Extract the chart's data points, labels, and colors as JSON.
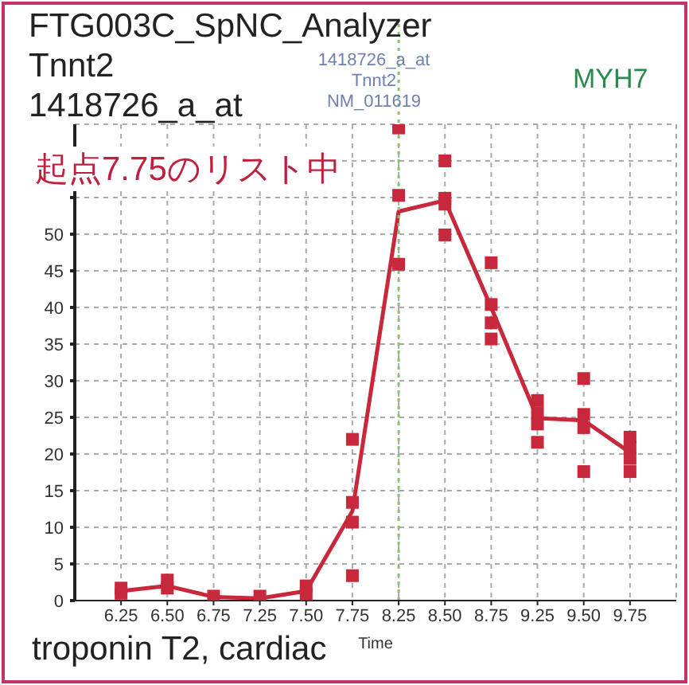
{
  "chart_data": {
    "type": "line",
    "title": "FTG003C_SpNC_Analyzer",
    "subtitle": "Tnnt2",
    "xlabel": "Time",
    "annotations": [
      "1418726_a_at",
      "起点7.75のリスト中",
      "troponin T2, cardiac",
      "MYH7",
      "1418726_a_at",
      "Tnnt2",
      "NM_011619"
    ],
    "categories": [
      "6.25",
      "6.50",
      "6.75",
      "7.25",
      "7.50",
      "7.75",
      "8.25",
      "8.50",
      "8.75",
      "9.25",
      "9.50",
      "9.75"
    ],
    "series": [
      {
        "color": "#c8283c",
        "values": [
          1.3,
          2.0,
          0.5,
          0.3,
          1.3,
          12.2,
          53.1,
          54.6,
          40.0,
          24.9,
          24.6,
          20.2
        ]
      },
      {
        "type": "scatter",
        "color": "#c8283c",
        "marker": "square",
        "x": [
          "6.25",
          "6.25",
          "6.50",
          "6.50",
          "6.75",
          "7.25",
          "7.50",
          "7.50",
          "7.75",
          "7.75",
          "7.75",
          "7.75",
          "8.25",
          "8.25",
          "8.25",
          "8.50",
          "8.50",
          "8.50",
          "8.50",
          "8.75",
          "8.75",
          "8.75",
          "8.75",
          "9.25",
          "9.25",
          "9.25",
          "9.25",
          "9.50",
          "9.50",
          "9.50",
          "9.50",
          "9.75",
          "9.75",
          "9.75",
          "9.75"
        ],
        "values": [
          1.0,
          1.7,
          2.8,
          1.7,
          0.6,
          0.6,
          2.0,
          0.9,
          22.0,
          13.4,
          10.7,
          3.4,
          64.5,
          55.3,
          45.9,
          60.0,
          54.9,
          54.1,
          49.9,
          46.1,
          40.4,
          37.9,
          35.7,
          27.3,
          25.6,
          24.1,
          21.6,
          30.3,
          25.4,
          23.6,
          17.6,
          22.3,
          20.9,
          19.4,
          17.6
        ]
      }
    ],
    "ylim": [
      0,
      65
    ],
    "yticks": [
      0,
      5,
      10,
      15,
      20,
      25,
      30,
      35,
      40,
      45,
      50,
      {
        "value": 55,
        "label": null
      },
      {
        "value": 60,
        "label": null
      }
    ],
    "grid": true,
    "ref_lines": [
      {
        "axis": "x",
        "value": "8.25",
        "color": "#8cc070",
        "line_style": "dotted"
      }
    ]
  }
}
